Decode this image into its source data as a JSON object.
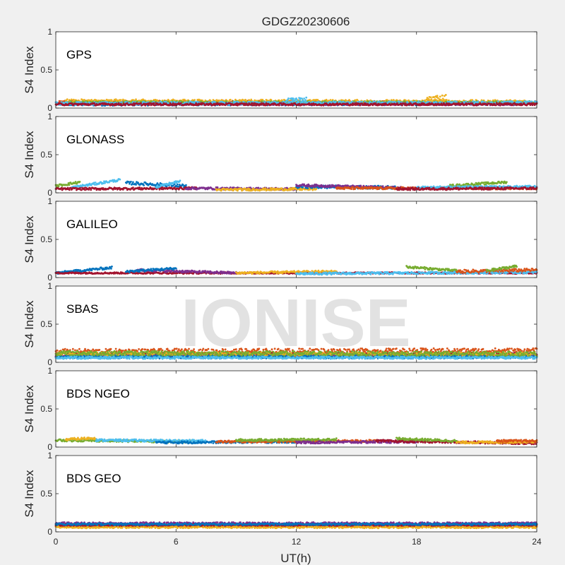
{
  "chart_data": {
    "type": "scatter",
    "title": "GDGZ20230606",
    "xlabel": "UT(h)",
    "ylabel": "S4 Index",
    "watermark": "IONISE",
    "xlim": [
      0,
      24
    ],
    "ylim": [
      0,
      1
    ],
    "xticks": [
      "0",
      "6",
      "12",
      "18",
      "24"
    ],
    "yticks": [
      "0",
      "0.5",
      "1"
    ],
    "series_colors": [
      "#0072BD",
      "#D95319",
      "#EDB120",
      "#7E2F8E",
      "#77AC30",
      "#4DBEEE",
      "#A2142F"
    ],
    "panels": [
      {
        "label": "GPS",
        "segments": [
          {
            "color_index": 0,
            "x": [
              0.2,
              24
            ],
            "y": [
              0.05,
              0.06
            ],
            "noise": 0.02
          },
          {
            "color_index": 1,
            "x": [
              0,
              24
            ],
            "y": [
              0.08,
              0.07
            ],
            "noise": 0.02
          },
          {
            "color_index": 2,
            "x": [
              0.5,
              23.5
            ],
            "y": [
              0.09,
              0.08
            ],
            "noise": 0.025
          },
          {
            "color_index": 3,
            "x": [
              1,
              23
            ],
            "y": [
              0.06,
              0.05
            ],
            "noise": 0.015
          },
          {
            "color_index": 4,
            "x": [
              0.5,
              24
            ],
            "y": [
              0.07,
              0.07
            ],
            "noise": 0.02
          },
          {
            "color_index": 5,
            "x": [
              0,
              24
            ],
            "y": [
              0.06,
              0.07
            ],
            "noise": 0.02
          },
          {
            "color_index": 6,
            "x": [
              0,
              24
            ],
            "y": [
              0.05,
              0.05
            ],
            "noise": 0.015
          },
          {
            "color_index": 2,
            "x": [
              18.5,
              19.5
            ],
            "y": [
              0.12,
              0.14
            ],
            "noise": 0.04
          },
          {
            "color_index": 5,
            "x": [
              11.5,
              12.5
            ],
            "y": [
              0.1,
              0.11
            ],
            "noise": 0.03
          }
        ]
      },
      {
        "label": "GLONASS",
        "segments": [
          {
            "color_index": 4,
            "x": [
              0,
              1.2
            ],
            "y": [
              0.09,
              0.14
            ],
            "noise": 0.015
          },
          {
            "color_index": 5,
            "x": [
              0.8,
              3.2
            ],
            "y": [
              0.07,
              0.17
            ],
            "noise": 0.015
          },
          {
            "color_index": 0,
            "x": [
              3.5,
              6.5
            ],
            "y": [
              0.13,
              0.09
            ],
            "noise": 0.02
          },
          {
            "color_index": 6,
            "x": [
              0,
              7
            ],
            "y": [
              0.05,
              0.06
            ],
            "noise": 0.015
          },
          {
            "color_index": 5,
            "x": [
              5,
              6.2
            ],
            "y": [
              0.08,
              0.15
            ],
            "noise": 0.015
          },
          {
            "color_index": 3,
            "x": [
              6.5,
              12
            ],
            "y": [
              0.06,
              0.05
            ],
            "noise": 0.015
          },
          {
            "color_index": 2,
            "x": [
              8,
              13
            ],
            "y": [
              0.04,
              0.05
            ],
            "noise": 0.015
          },
          {
            "color_index": 0,
            "x": [
              12,
              17
            ],
            "y": [
              0.08,
              0.07
            ],
            "noise": 0.02
          },
          {
            "color_index": 3,
            "x": [
              12,
              18
            ],
            "y": [
              0.1,
              0.06
            ],
            "noise": 0.015
          },
          {
            "color_index": 1,
            "x": [
              14,
              24
            ],
            "y": [
              0.06,
              0.06
            ],
            "noise": 0.015
          },
          {
            "color_index": 4,
            "x": [
              19.5,
              22.5
            ],
            "y": [
              0.09,
              0.14
            ],
            "noise": 0.015
          },
          {
            "color_index": 5,
            "x": [
              18,
              24
            ],
            "y": [
              0.07,
              0.08
            ],
            "noise": 0.015
          },
          {
            "color_index": 6,
            "x": [
              17,
              24
            ],
            "y": [
              0.05,
              0.06
            ],
            "noise": 0.015
          }
        ]
      },
      {
        "label": "GALILEO",
        "segments": [
          {
            "color_index": 0,
            "x": [
              0,
              2.8
            ],
            "y": [
              0.06,
              0.13
            ],
            "noise": 0.015
          },
          {
            "color_index": 6,
            "x": [
              0,
              24
            ],
            "y": [
              0.06,
              0.06
            ],
            "noise": 0.01
          },
          {
            "color_index": 3,
            "x": [
              4,
              9
            ],
            "y": [
              0.1,
              0.06
            ],
            "noise": 0.015
          },
          {
            "color_index": 0,
            "x": [
              3.5,
              6
            ],
            "y": [
              0.08,
              0.12
            ],
            "noise": 0.015
          },
          {
            "color_index": 2,
            "x": [
              9,
              14
            ],
            "y": [
              0.06,
              0.08
            ],
            "noise": 0.015
          },
          {
            "color_index": 4,
            "x": [
              17.5,
              20
            ],
            "y": [
              0.14,
              0.09
            ],
            "noise": 0.015
          },
          {
            "color_index": 5,
            "x": [
              12,
              24
            ],
            "y": [
              0.05,
              0.07
            ],
            "noise": 0.015
          },
          {
            "color_index": 1,
            "x": [
              20,
              24
            ],
            "y": [
              0.08,
              0.1
            ],
            "noise": 0.02
          },
          {
            "color_index": 4,
            "x": [
              21.5,
              23
            ],
            "y": [
              0.09,
              0.15
            ],
            "noise": 0.015
          }
        ]
      },
      {
        "label": "SBAS",
        "segments": [
          {
            "color_index": 1,
            "x": [
              0,
              24
            ],
            "y": [
              0.14,
              0.15
            ],
            "noise": 0.035
          },
          {
            "color_index": 6,
            "x": [
              0,
              24
            ],
            "y": [
              0.1,
              0.1
            ],
            "noise": 0.025
          },
          {
            "color_index": 3,
            "x": [
              0,
              24
            ],
            "y": [
              0.08,
              0.08
            ],
            "noise": 0.02
          },
          {
            "color_index": 2,
            "x": [
              0,
              24
            ],
            "y": [
              0.11,
              0.1
            ],
            "noise": 0.025
          },
          {
            "color_index": 0,
            "x": [
              0,
              24
            ],
            "y": [
              0.07,
              0.07
            ],
            "noise": 0.02
          },
          {
            "color_index": 4,
            "x": [
              0,
              24
            ],
            "y": [
              0.12,
              0.11
            ],
            "noise": 0.03
          },
          {
            "color_index": 5,
            "x": [
              0,
              24
            ],
            "y": [
              0.06,
              0.06
            ],
            "noise": 0.015
          }
        ]
      },
      {
        "label": "BDS NGEO",
        "segments": [
          {
            "color_index": 4,
            "x": [
              0,
              7
            ],
            "y": [
              0.09,
              0.07
            ],
            "noise": 0.015
          },
          {
            "color_index": 2,
            "x": [
              0.5,
              2
            ],
            "y": [
              0.1,
              0.12
            ],
            "noise": 0.015
          },
          {
            "color_index": 5,
            "x": [
              2,
              7.5
            ],
            "y": [
              0.09,
              0.08
            ],
            "noise": 0.015
          },
          {
            "color_index": 0,
            "x": [
              5,
              12
            ],
            "y": [
              0.06,
              0.07
            ],
            "noise": 0.015
          },
          {
            "color_index": 1,
            "x": [
              8,
              16
            ],
            "y": [
              0.07,
              0.08
            ],
            "noise": 0.015
          },
          {
            "color_index": 4,
            "x": [
              9,
              14
            ],
            "y": [
              0.09,
              0.1
            ],
            "noise": 0.015
          },
          {
            "color_index": 3,
            "x": [
              12,
              18
            ],
            "y": [
              0.06,
              0.07
            ],
            "noise": 0.015
          },
          {
            "color_index": 6,
            "x": [
              16,
              24
            ],
            "y": [
              0.08,
              0.05
            ],
            "noise": 0.015
          },
          {
            "color_index": 4,
            "x": [
              17,
              20
            ],
            "y": [
              0.11,
              0.08
            ],
            "noise": 0.015
          },
          {
            "color_index": 2,
            "x": [
              20,
              24
            ],
            "y": [
              0.06,
              0.07
            ],
            "noise": 0.015
          },
          {
            "color_index": 1,
            "x": [
              22,
              24
            ],
            "y": [
              0.08,
              0.08
            ],
            "noise": 0.015
          }
        ]
      },
      {
        "label": "BDS GEO",
        "segments": [
          {
            "color_index": 1,
            "x": [
              0,
              24
            ],
            "y": [
              0.08,
              0.08
            ],
            "noise": 0.012
          },
          {
            "color_index": 2,
            "x": [
              0,
              24
            ],
            "y": [
              0.06,
              0.06
            ],
            "noise": 0.012
          },
          {
            "color_index": 3,
            "x": [
              0,
              24
            ],
            "y": [
              0.11,
              0.11
            ],
            "noise": 0.015
          },
          {
            "color_index": 6,
            "x": [
              0,
              24
            ],
            "y": [
              0.09,
              0.09
            ],
            "noise": 0.012
          },
          {
            "color_index": 0,
            "x": [
              0,
              24
            ],
            "y": [
              0.1,
              0.1
            ],
            "noise": 0.012
          }
        ]
      }
    ]
  }
}
